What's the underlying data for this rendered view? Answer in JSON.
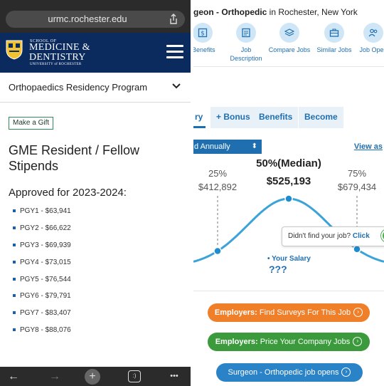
{
  "left": {
    "url": "urmc.rochester.edu",
    "logo": {
      "school_of": "SCHOOL OF",
      "line1": "MEDICINE &",
      "line2": "DENTISTRY",
      "university": "UNIVERSITY of ROCHESTER"
    },
    "program_dropdown": "Orthopaedics Residency Program",
    "gift_button": "Make a Gift",
    "heading": "GME Resident / Fellow Stipends",
    "subheading": "Approved for 2023-2024:",
    "stipends": [
      "PGY1 - $63,941",
      "PGY2 - $66,622",
      "PGY3 - $69,939",
      "PGY4 - $73,015",
      "PGY5 - $76,544",
      "PGY6 - $79,791",
      "PGY7 - $83,407",
      "PGY8 - $88,076"
    ],
    "bottom_nav": {
      "back": "←",
      "forward": "→",
      "new_tab": "+",
      "tabs_badge": ":)",
      "more": "•••"
    }
  },
  "right": {
    "title_bold": "geon - Orthopedic",
    "title_rest": " in Rochester, New York",
    "toolbar": [
      {
        "label": "Benefits",
        "icon": "money-icon"
      },
      {
        "label": "Job Description",
        "icon": "document-icon"
      },
      {
        "label": "Compare Jobs",
        "icon": "layers-icon"
      },
      {
        "label": "Similar Jobs",
        "icon": "briefcase-icon"
      },
      {
        "label": "Job Open",
        "icon": "people-icon"
      }
    ],
    "tabs": [
      "ry",
      "+ Bonus",
      "Benefits",
      "Become"
    ],
    "pay_select": "d Annually",
    "view_as": "View as",
    "help_text": "Didn't find your job?",
    "help_link": "Click",
    "ctas": {
      "survey_bold": "Employers:",
      "survey_rest": " Find Surveys For This Job",
      "price_bold": "Employers:",
      "price_rest": " Price Your Company Jobs",
      "openings": "Surgeon - Orthopedic job opens"
    },
    "colors": {
      "accent": "#1f6fb0",
      "orange": "#f07f2a",
      "green": "#3a9a3c",
      "blue": "#2a82c7"
    }
  },
  "chart_data": {
    "type": "area",
    "title": "",
    "xlabel": "",
    "ylabel": "",
    "percentiles": [
      {
        "label": "25%",
        "value": "$412,892",
        "salary": 412892
      },
      {
        "label": "50%(Median)",
        "value": "$525,193",
        "salary": 525193
      },
      {
        "label": "75%",
        "value": "$679,434",
        "salary": 679434
      }
    ],
    "your_salary_label": "• Your Salary",
    "your_salary_value": "???"
  }
}
